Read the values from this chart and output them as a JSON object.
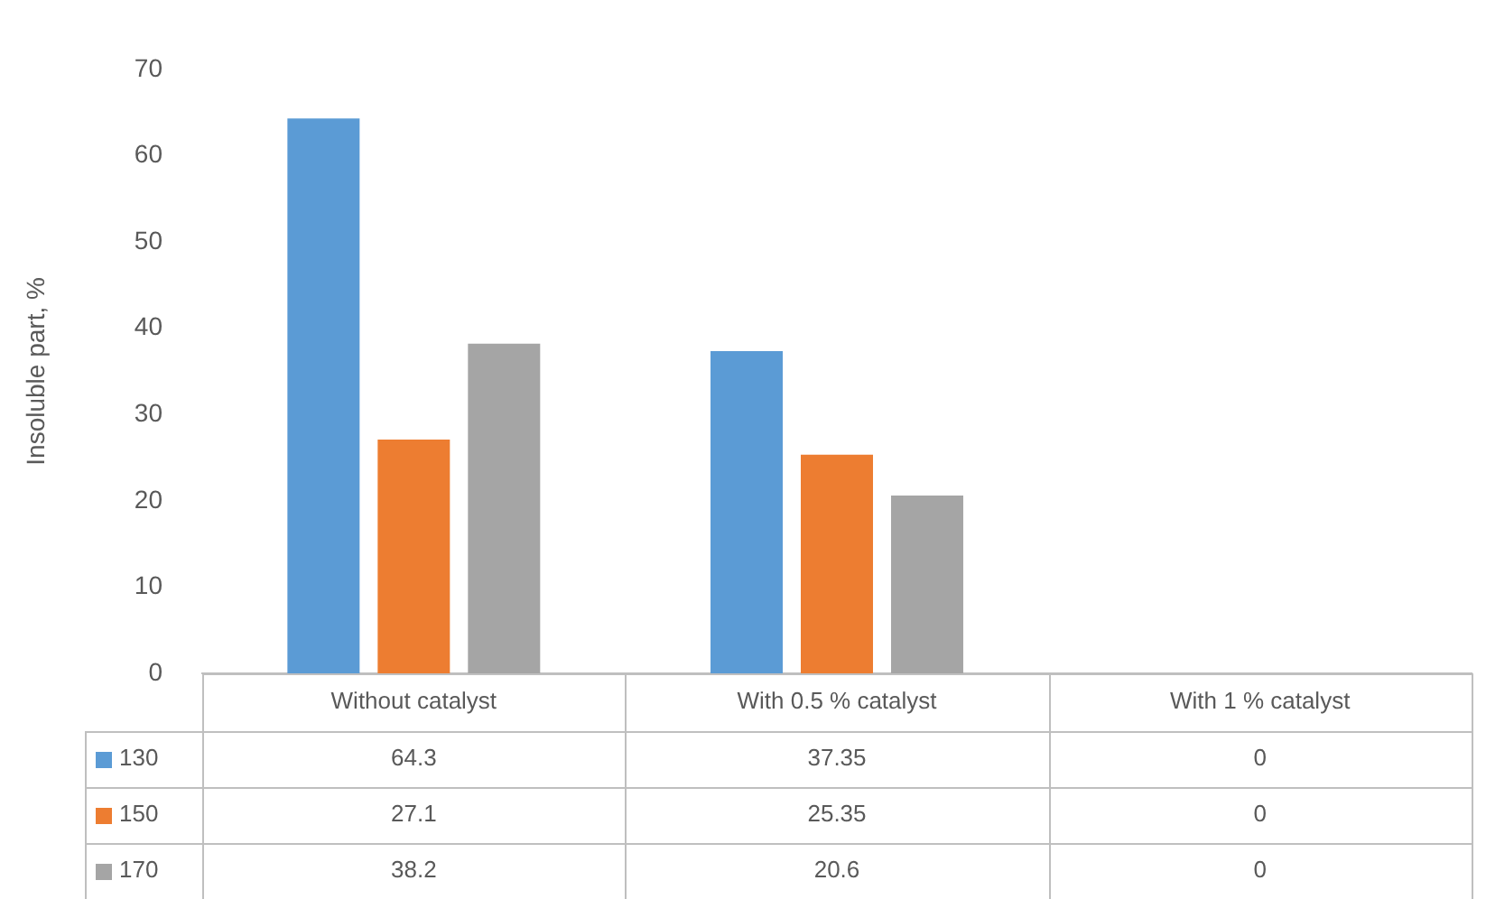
{
  "chart_data": {
    "type": "bar",
    "ylabel": "Insoluble part, %",
    "categories": [
      "Without catalyst",
      "With 0.5 % catalyst",
      "With 1 % catalyst"
    ],
    "series": [
      {
        "name": "130",
        "color": "#5b9bd5",
        "values": [
          64.3,
          37.35,
          0
        ]
      },
      {
        "name": "150",
        "color": "#ed7d31",
        "values": [
          27.1,
          25.35,
          0
        ]
      },
      {
        "name": "170",
        "color": "#a5a5a5",
        "values": [
          38.2,
          20.6,
          0
        ]
      }
    ],
    "ylim": [
      0,
      70
    ],
    "yticks": [
      0,
      10,
      20,
      30,
      40,
      50,
      60,
      70
    ],
    "grid": false,
    "legend": "bottom",
    "data_labels": true
  }
}
